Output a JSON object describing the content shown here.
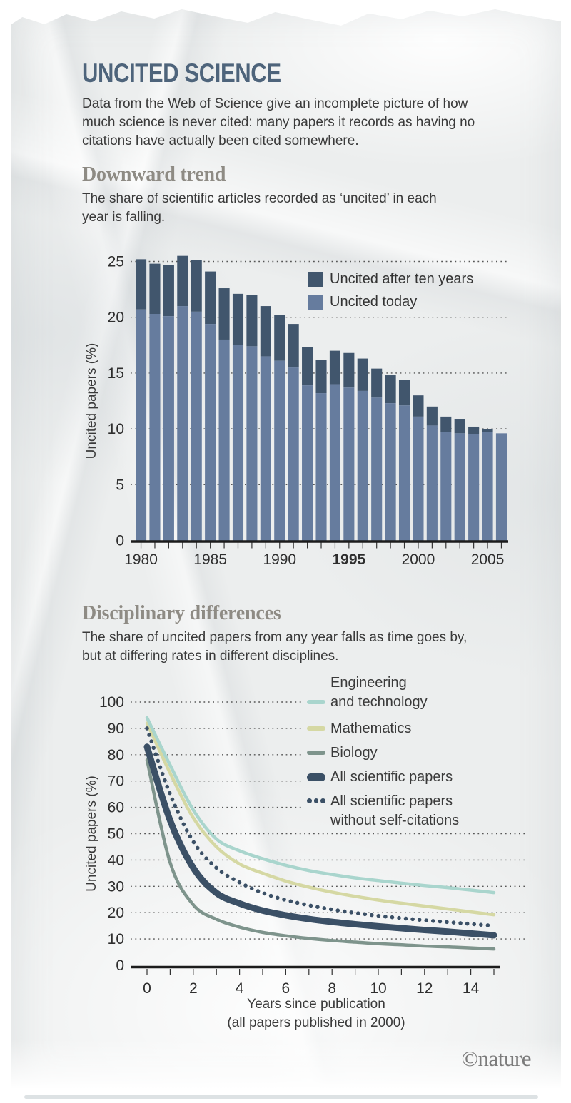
{
  "page": {
    "title": "UNCITED SCIENCE",
    "intro": "Data from the Web of Science give an incomplete picture of how much science is never cited: many papers it records as having no citations have actually been cited somewhere.",
    "brand": "©nature"
  },
  "colors": {
    "title": "#4e647b",
    "section_heading": "#8e8b84",
    "body_text": "#3a3a3a",
    "axis_line": "#1c1c1c",
    "grid_dots": "#3c3c3c",
    "bar_dark": "#41566d",
    "bar_light": "#667c9e",
    "engineering": "#a9d5cd",
    "mathematics": "#d5d8a3",
    "biology": "#7e948c",
    "navy": "#3b5066",
    "paper": "#eceeee"
  },
  "chart_data": [
    {
      "id": "downward-trend",
      "type": "bar",
      "stacked": true,
      "title": "Downward trend",
      "subtitle": "The share of scientific articles recorded as ‘uncited’ in each year is falling.",
      "ylabel": "Uncited papers (%)",
      "ylim": [
        0,
        25
      ],
      "yticks": [
        0,
        5,
        10,
        15,
        20,
        25
      ],
      "xtick_labels": [
        1980,
        1985,
        1990,
        1995,
        2000,
        2005
      ],
      "bold_xtick": 1995,
      "categories": [
        1980,
        1981,
        1982,
        1983,
        1984,
        1985,
        1986,
        1987,
        1988,
        1989,
        1990,
        1991,
        1992,
        1993,
        1994,
        1995,
        1996,
        1997,
        1998,
        1999,
        2000,
        2001,
        2002,
        2003,
        2004,
        2005,
        2006
      ],
      "series": [
        {
          "name": "Uncited after ten years",
          "color": "#41566d",
          "values": [
            25.2,
            24.8,
            24.7,
            25.5,
            25.1,
            24.1,
            22.6,
            22.1,
            22.0,
            21.0,
            20.2,
            19.4,
            17.3,
            16.2,
            17.0,
            16.8,
            16.3,
            15.4,
            14.8,
            14.4,
            13.0,
            12.0,
            11.1,
            10.9,
            10.2,
            10.0,
            9.6
          ]
        },
        {
          "name": "Uncited today",
          "color": "#667c9e",
          "values": [
            20.7,
            20.3,
            20.1,
            21.0,
            20.5,
            19.4,
            18.0,
            17.5,
            17.4,
            16.5,
            16.1,
            15.5,
            13.9,
            13.2,
            14.0,
            13.7,
            13.4,
            12.8,
            12.3,
            12.1,
            11.1,
            10.3,
            9.7,
            9.6,
            9.5,
            9.7,
            9.6
          ]
        }
      ],
      "legend_note": "dark = share still uncited ten years after publication; light = share uncited today"
    },
    {
      "id": "disciplinary-differences",
      "type": "line",
      "title": "Disciplinary differences",
      "subtitle": "The share of uncited papers from any year falls as time goes by, but at differing rates in different disciplines.",
      "ylabel": "Uncited papers (%)",
      "xlabel": "Years since publication (all papers published in 2000)",
      "xlabel_lines": [
        "Years since publication",
        "(all papers published in 2000)"
      ],
      "ylim": [
        0,
        100
      ],
      "yticks": [
        0,
        10,
        20,
        30,
        40,
        50,
        60,
        70,
        80,
        90,
        100
      ],
      "xtick_labels": [
        0,
        2,
        4,
        6,
        8,
        10,
        12,
        14
      ],
      "x": [
        0,
        1,
        2,
        3,
        4,
        5,
        6,
        7,
        8,
        9,
        10,
        11,
        12,
        13,
        14,
        15
      ],
      "series": [
        {
          "name": "Engineering and technology",
          "label_lines": [
            "Engineering",
            "and technology"
          ],
          "color": "#a9d5cd",
          "style": "solid",
          "width": 4.5,
          "values": [
            94,
            76,
            59,
            48,
            43.5,
            40.5,
            38,
            36,
            34.5,
            33.2,
            32.2,
            31.2,
            30.3,
            29.5,
            28.6,
            27.6
          ]
        },
        {
          "name": "Mathematics",
          "label_lines": [
            "Mathematics"
          ],
          "color": "#d5d8a3",
          "style": "solid",
          "width": 4.5,
          "values": [
            92,
            73,
            56,
            45,
            38.5,
            35,
            32,
            29.7,
            27.8,
            26.2,
            24.8,
            23.6,
            22.5,
            21.4,
            20.3,
            19.2
          ]
        },
        {
          "name": "Biology",
          "label_lines": [
            "Biology"
          ],
          "color": "#7e948c",
          "style": "solid",
          "width": 4.5,
          "values": [
            78,
            39,
            23,
            17.5,
            14.5,
            12.5,
            11.2,
            10.2,
            9.4,
            8.8,
            8.2,
            7.8,
            7.3,
            7.0,
            6.6,
            6.2
          ]
        },
        {
          "name": "All scientific papers",
          "label_lines": [
            "All scientific papers"
          ],
          "color": "#3b5066",
          "style": "solid",
          "width": 9,
          "values": [
            83,
            55,
            37,
            27.5,
            23.5,
            20.8,
            19,
            17.6,
            16.5,
            15.6,
            14.8,
            14.1,
            13.4,
            12.8,
            12.1,
            11.4
          ]
        },
        {
          "name": "All scientific papers without self-citations",
          "label_lines": [
            "All scientific papers",
            "without self-citations"
          ],
          "color": "#3b5066",
          "style": "dotted",
          "width": 5.5,
          "values": [
            90,
            65,
            47,
            37,
            31.5,
            27.5,
            24.8,
            22.8,
            21.2,
            19.9,
            18.8,
            17.9,
            17.1,
            16.4,
            15.7,
            15.0
          ]
        }
      ]
    }
  ]
}
